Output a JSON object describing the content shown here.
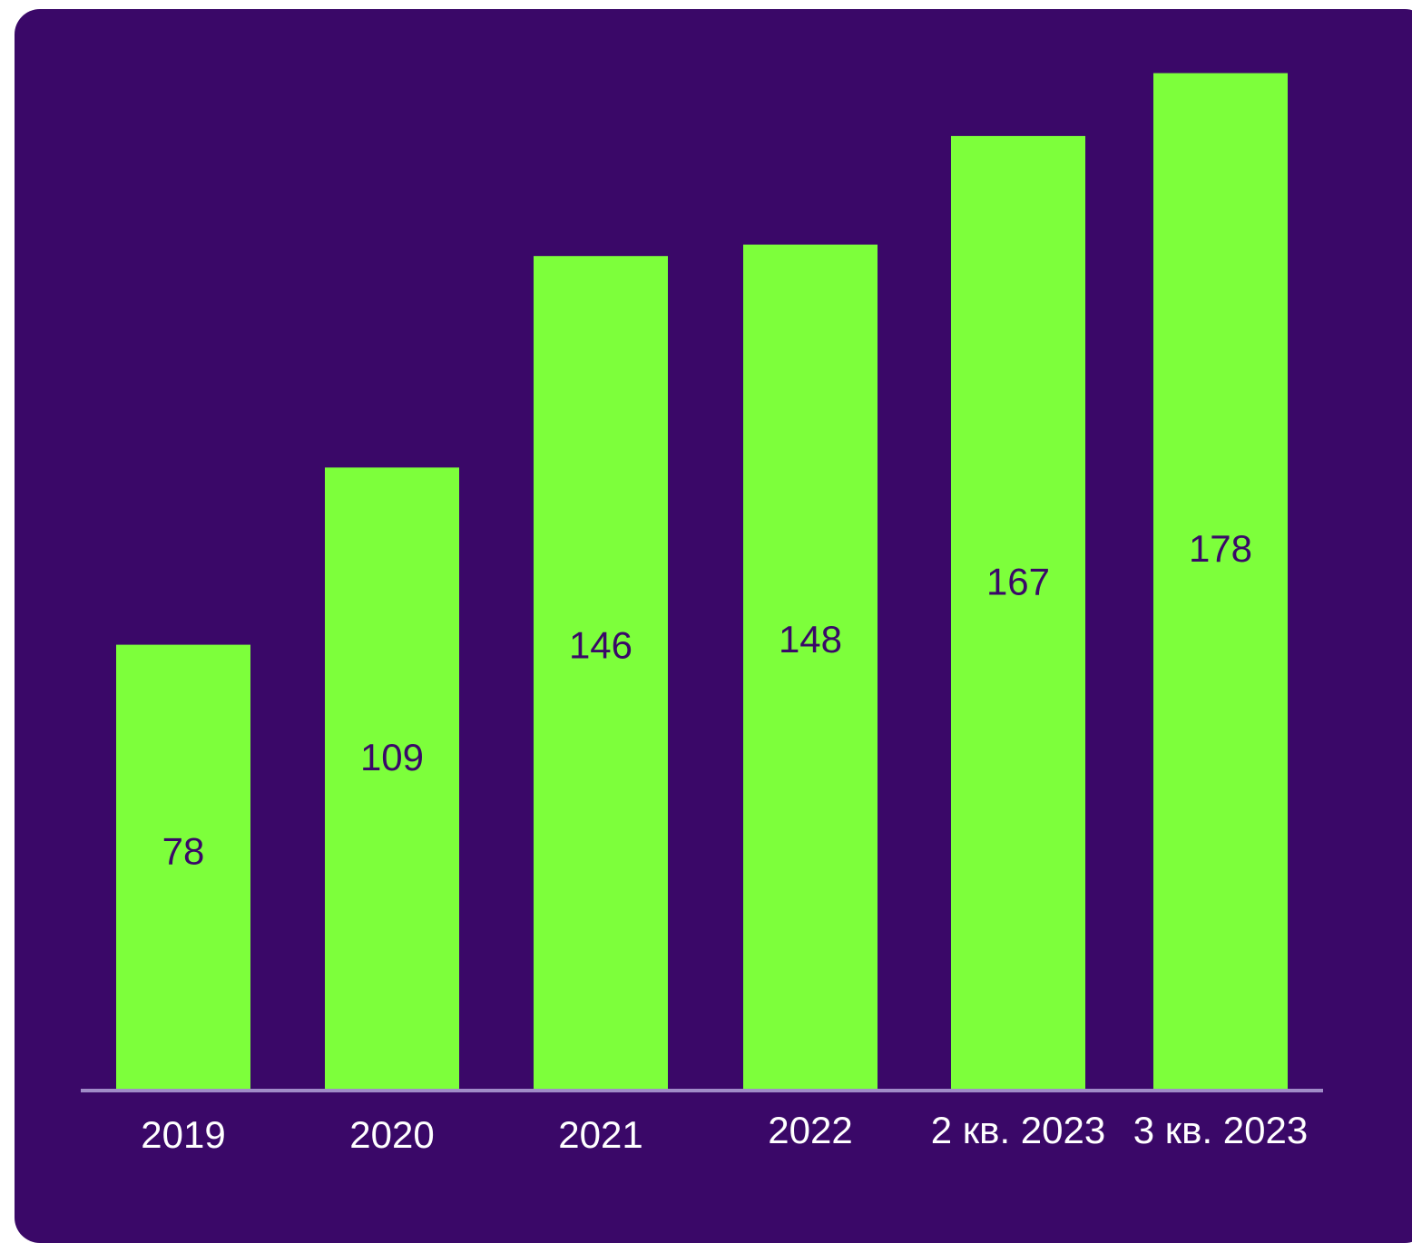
{
  "colors": {
    "background": "#3a0868",
    "bar": "#7dff3b",
    "axis": "#a08cc8",
    "value_text": "#3a0868",
    "category_text": "#ffffff"
  },
  "chart_data": {
    "type": "bar",
    "categories": [
      "2019",
      "2020",
      "2021",
      "2022",
      "2 кв. 2023",
      "3 кв. 2023"
    ],
    "values": [
      78,
      109,
      146,
      148,
      167,
      178
    ],
    "title": "",
    "xlabel": "",
    "ylabel": "",
    "ylim": [
      0,
      190
    ],
    "grid": false,
    "legend": "none",
    "data_labels": true
  }
}
